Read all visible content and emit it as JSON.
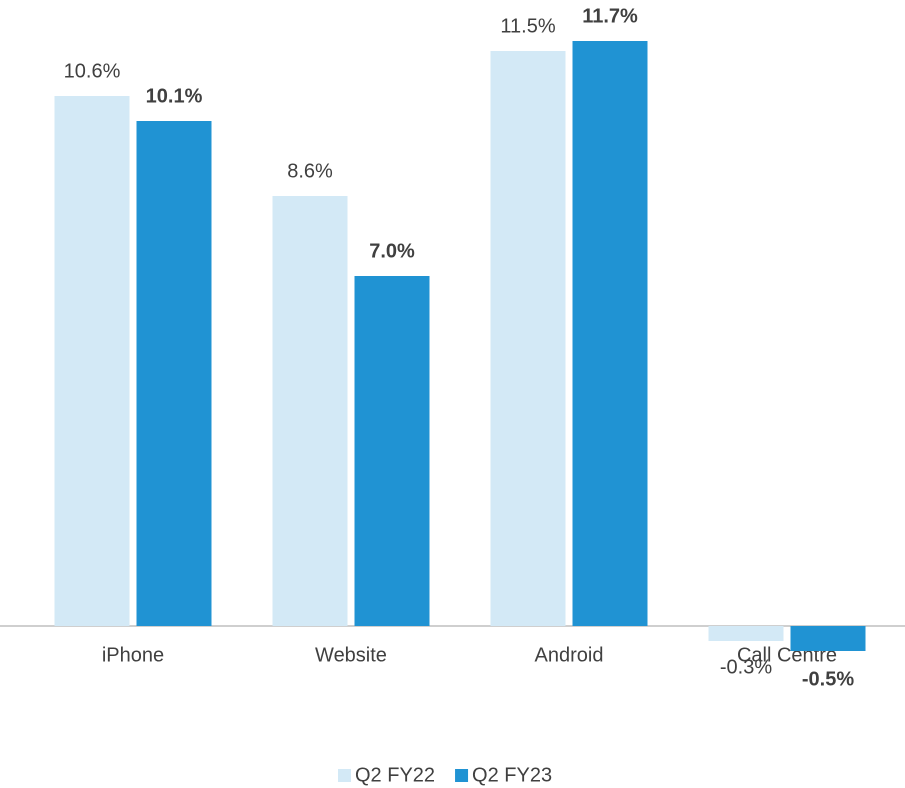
{
  "chart_data": {
    "type": "bar",
    "categories": [
      "iPhone",
      "Website",
      "Android",
      "Call Centre"
    ],
    "series": [
      {
        "name": "Q2 FY22",
        "color": "#d3e9f6",
        "values": [
          10.6,
          8.6,
          11.5,
          -0.3
        ],
        "value_labels": [
          "10.6%",
          "8.6%",
          "11.5%",
          "-0.3%"
        ]
      },
      {
        "name": "Q2 FY23",
        "color": "#2093d3",
        "values": [
          10.1,
          7.0,
          11.7,
          -0.5
        ],
        "value_labels": [
          "10.1%",
          "7.0%",
          "11.7%",
          "-0.5%"
        ]
      }
    ],
    "ylim": [
      -2,
      12.5
    ],
    "legend": "bottom"
  }
}
